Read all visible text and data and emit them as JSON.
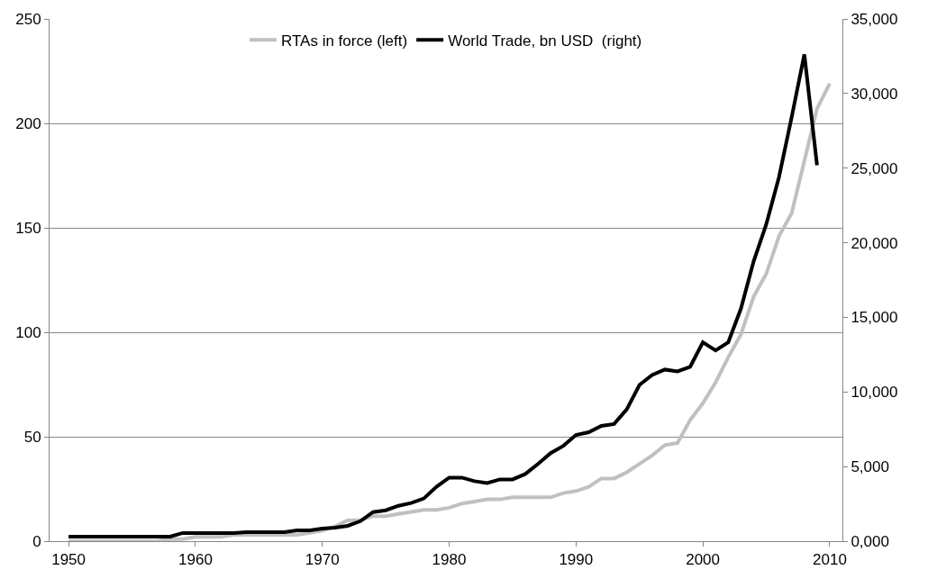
{
  "chart_data": {
    "type": "line",
    "x": [
      1950,
      1951,
      1952,
      1953,
      1954,
      1955,
      1956,
      1957,
      1958,
      1959,
      1960,
      1961,
      1962,
      1963,
      1964,
      1965,
      1966,
      1967,
      1968,
      1969,
      1970,
      1971,
      1972,
      1973,
      1974,
      1975,
      1976,
      1977,
      1978,
      1979,
      1980,
      1981,
      1982,
      1983,
      1984,
      1985,
      1986,
      1987,
      1988,
      1989,
      1990,
      1991,
      1992,
      1993,
      1994,
      1995,
      1996,
      1997,
      1998,
      1999,
      2000,
      2001,
      2002,
      2003,
      2004,
      2005,
      2006,
      2007,
      2008,
      2009,
      2010
    ],
    "series": [
      {
        "name": "RTAs in force (left)",
        "color": "#c0c0c0",
        "axis": "y",
        "values": [
          0,
          0,
          0,
          0,
          0,
          0,
          0,
          0,
          1,
          1,
          2,
          2,
          2,
          3,
          3,
          3,
          3,
          3,
          3,
          4,
          5,
          7,
          10,
          10,
          12,
          12,
          13,
          14,
          15,
          15,
          16,
          18,
          19,
          20,
          20,
          21,
          21,
          21,
          21,
          23,
          24,
          26,
          30,
          30,
          33,
          37,
          41,
          46,
          47,
          58,
          66,
          76,
          88,
          99,
          117,
          128,
          146,
          157,
          182,
          207,
          219
        ]
      },
      {
        "name": "World Trade, bn USD  (right)",
        "color": "#000000",
        "axis": "y2",
        "values": [
          300,
          300,
          300,
          300,
          300,
          300,
          300,
          300,
          300,
          550,
          550,
          550,
          550,
          550,
          600,
          600,
          600,
          600,
          730,
          730,
          850,
          910,
          1030,
          1340,
          1950,
          2070,
          2370,
          2560,
          2860,
          3650,
          4260,
          4260,
          4020,
          3900,
          4140,
          4140,
          4500,
          5170,
          5900,
          6390,
          7120,
          7300,
          7730,
          7850,
          8830,
          10470,
          11140,
          11500,
          11380,
          11690,
          13330,
          12780,
          13330,
          15580,
          18750,
          21240,
          24400,
          28420,
          32620,
          25200,
          null
        ]
      }
    ],
    "xlim": [
      1948.5,
      2011
    ],
    "xticks": [
      1950,
      1960,
      1970,
      1980,
      1990,
      2000,
      2010
    ],
    "ylim": [
      0,
      250
    ],
    "yticks": [
      0,
      50,
      100,
      150,
      200,
      250
    ],
    "y2lim": [
      0,
      35000
    ],
    "y2ticks": [
      {
        "value": 0,
        "label": "0,000"
      },
      {
        "value": 5000,
        "label": "5,000"
      },
      {
        "value": 10000,
        "label": "10,000"
      },
      {
        "value": 15000,
        "label": "15,000"
      },
      {
        "value": 20000,
        "label": "20,000"
      },
      {
        "value": 25000,
        "label": "25,000"
      },
      {
        "value": 30000,
        "label": "30,000"
      },
      {
        "value": 35000,
        "label": "35,000"
      }
    ],
    "grid": "y",
    "legend": "top",
    "marker": "none",
    "line_style": "solid"
  }
}
